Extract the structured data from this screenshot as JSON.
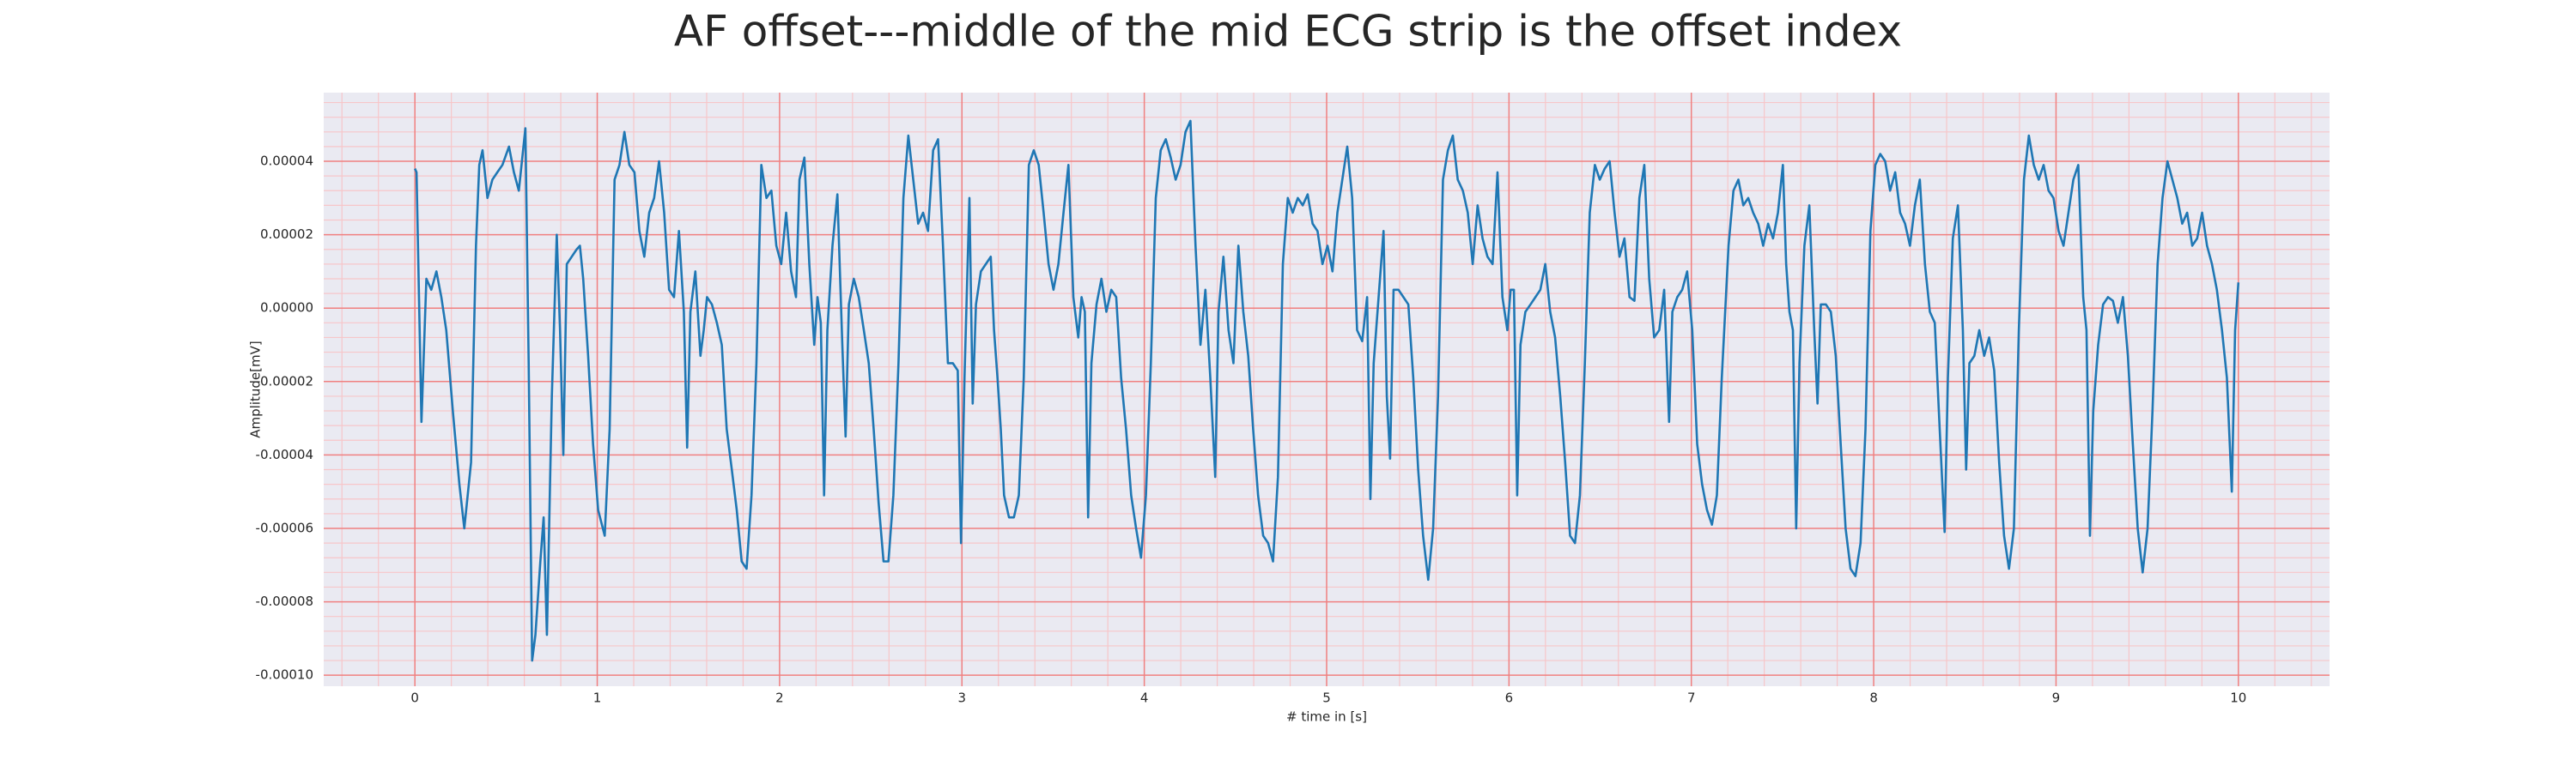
{
  "chart_data": {
    "type": "line",
    "title": "AF offset---middle of the mid ECG strip is the offset index",
    "xlabel": "# time in [s]",
    "ylabel": "Amplitude[mV]",
    "color": "#1f77b4",
    "grid": true,
    "grid_color": "#f08080",
    "minor_grid": true,
    "minor_grid_color": "#f7c6c9",
    "minor_divisions": 5,
    "xlim": [
      -0.5,
      10.5
    ],
    "ylim": [
      -0.000103,
      5.87e-05
    ],
    "xticks": [
      0,
      1,
      2,
      3,
      4,
      5,
      6,
      7,
      8,
      9,
      10
    ],
    "yticks": [
      {
        "value": 4e-05,
        "label": "0.00004"
      },
      {
        "value": 2e-05,
        "label": "0.00002"
      },
      {
        "value": 0,
        "label": "0.00000"
      },
      {
        "value": -2e-05,
        "label": "-0.00002"
      },
      {
        "value": -4e-05,
        "label": "-0.00004"
      },
      {
        "value": -6e-05,
        "label": "-0.00006"
      },
      {
        "value": -8e-05,
        "label": "-0.00008"
      },
      {
        "value": -0.0001,
        "label": "-0.00010"
      }
    ],
    "x": [
      0,
      0.009,
      0.036,
      0.063,
      0.09,
      0.118,
      0.145,
      0.172,
      0.208,
      0.244,
      0.271,
      0.308,
      0.335,
      0.353,
      0.371,
      0.398,
      0.425,
      0.452,
      0.48,
      0.516,
      0.543,
      0.57,
      0.606,
      0.624,
      0.643,
      0.661,
      0.688,
      0.706,
      0.724,
      0.751,
      0.778,
      0.796,
      0.814,
      0.833,
      0.86,
      0.887,
      0.905,
      0.923,
      0.95,
      0.977,
      1.005,
      1.041,
      1.068,
      1.095,
      1.122,
      1.149,
      1.176,
      1.204,
      1.231,
      1.258,
      1.285,
      1.312,
      1.339,
      1.367,
      1.394,
      1.421,
      1.448,
      1.475,
      1.493,
      1.511,
      1.538,
      1.566,
      1.584,
      1.602,
      1.629,
      1.656,
      1.683,
      1.71,
      1.738,
      1.765,
      1.792,
      1.819,
      1.846,
      1.873,
      1.9,
      1.928,
      1.955,
      1.982,
      2.009,
      2.036,
      2.063,
      2.09,
      2.109,
      2.136,
      2.163,
      2.19,
      2.208,
      2.226,
      2.244,
      2.262,
      2.29,
      2.317,
      2.344,
      2.362,
      2.38,
      2.407,
      2.434,
      2.462,
      2.489,
      2.516,
      2.543,
      2.57,
      2.597,
      2.624,
      2.652,
      2.679,
      2.706,
      2.733,
      2.76,
      2.787,
      2.814,
      2.842,
      2.869,
      2.896,
      2.923,
      2.95,
      2.977,
      2.995,
      3.014,
      3.041,
      3.059,
      3.077,
      3.104,
      3.131,
      3.158,
      3.176,
      3.195,
      3.213,
      3.231,
      3.258,
      3.285,
      3.312,
      3.339,
      3.367,
      3.394,
      3.421,
      3.448,
      3.475,
      3.502,
      3.529,
      3.557,
      3.584,
      3.611,
      3.638,
      3.656,
      3.674,
      3.692,
      3.71,
      3.738,
      3.765,
      3.792,
      3.819,
      3.846,
      3.873,
      3.9,
      3.928,
      3.955,
      3.982,
      4.009,
      4.036,
      4.063,
      4.09,
      4.118,
      4.145,
      4.172,
      4.199,
      4.226,
      4.253,
      4.281,
      4.308,
      4.335,
      4.362,
      4.389,
      4.407,
      4.434,
      4.462,
      4.489,
      4.516,
      4.543,
      4.57,
      4.597,
      4.624,
      4.652,
      4.679,
      4.706,
      4.733,
      4.76,
      4.787,
      4.814,
      4.842,
      4.869,
      4.896,
      4.923,
      4.95,
      4.977,
      5.005,
      5.032,
      5.059,
      5.086,
      5.113,
      5.14,
      5.167,
      5.195,
      5.222,
      5.24,
      5.258,
      5.285,
      5.312,
      5.33,
      5.348,
      5.367,
      5.394,
      5.421,
      5.448,
      5.475,
      5.502,
      5.529,
      5.557,
      5.584,
      5.611,
      5.638,
      5.665,
      5.692,
      5.719,
      5.747,
      5.774,
      5.801,
      5.828,
      5.855,
      5.882,
      5.91,
      5.937,
      5.964,
      5.991,
      6.009,
      6.027,
      6.045,
      6.063,
      6.09,
      6.118,
      6.145,
      6.172,
      6.199,
      6.226,
      6.253,
      6.281,
      6.308,
      6.335,
      6.362,
      6.389,
      6.416,
      6.443,
      6.471,
      6.498,
      6.525,
      6.552,
      6.579,
      6.606,
      6.633,
      6.661,
      6.688,
      6.715,
      6.742,
      6.769,
      6.796,
      6.824,
      6.851,
      6.878,
      6.896,
      6.923,
      6.95,
      6.977,
      7.005,
      7.032,
      7.059,
      7.086,
      7.113,
      7.14,
      7.167,
      7.204,
      7.231,
      7.258,
      7.285,
      7.312,
      7.339,
      7.367,
      7.394,
      7.421,
      7.448,
      7.475,
      7.502,
      7.52,
      7.538,
      7.557,
      7.575,
      7.593,
      7.62,
      7.647,
      7.674,
      7.692,
      7.71,
      7.738,
      7.765,
      7.792,
      7.819,
      7.846,
      7.873,
      7.9,
      7.928,
      7.955,
      7.982,
      8.009,
      8.036,
      8.063,
      8.09,
      8.118,
      8.145,
      8.172,
      8.199,
      8.226,
      8.253,
      8.281,
      8.308,
      8.335,
      8.362,
      8.389,
      8.407,
      8.434,
      8.462,
      8.489,
      8.507,
      8.525,
      8.552,
      8.579,
      8.606,
      8.633,
      8.661,
      8.688,
      8.715,
      8.742,
      8.769,
      8.796,
      8.824,
      8.851,
      8.878,
      8.905,
      8.932,
      8.959,
      8.986,
      9.014,
      9.041,
      9.068,
      9.095,
      9.122,
      9.149,
      9.167,
      9.186,
      9.204,
      9.231,
      9.258,
      9.285,
      9.312,
      9.339,
      9.367,
      9.394,
      9.421,
      9.448,
      9.475,
      9.502,
      9.529,
      9.557,
      9.584,
      9.611,
      9.638,
      9.665,
      9.692,
      9.719,
      9.747,
      9.774,
      9.801,
      9.828,
      9.855,
      9.882,
      9.91,
      9.937,
      9.964,
      9.982,
      10.0
    ],
    "values": [
      3.8e-05,
      3.7e-05,
      -3.1e-05,
      8e-06,
      5e-06,
      1e-05,
      3e-06,
      -6e-06,
      -2.8e-05,
      -4.8e-05,
      -6e-05,
      -4.2e-05,
      1.7e-05,
      3.9e-05,
      4.3e-05,
      3e-05,
      3.5e-05,
      3.7e-05,
      3.9e-05,
      4.4e-05,
      3.7e-05,
      3.2e-05,
      4.9e-05,
      -1.5e-05,
      -9.6e-05,
      -8.9e-05,
      -6.9e-05,
      -5.7e-05,
      -8.9e-05,
      -2.4e-05,
      2e-05,
      -6e-06,
      -4e-05,
      1.2e-05,
      1.4e-05,
      1.6e-05,
      1.7e-05,
      8e-06,
      -1.3e-05,
      -3.7e-05,
      -5.5e-05,
      -6.2e-05,
      -3.3e-05,
      3.5e-05,
      3.9e-05,
      4.8e-05,
      3.9e-05,
      3.7e-05,
      2.1e-05,
      1.4e-05,
      2.6e-05,
      3e-05,
      4e-05,
      2.6e-05,
      5e-06,
      3e-06,
      2.1e-05,
      -1e-06,
      -3.8e-05,
      -1e-06,
      1e-05,
      -1.3e-05,
      -6e-06,
      3e-06,
      1e-06,
      -4e-06,
      -1e-05,
      -3.3e-05,
      -4.4e-05,
      -5.5e-05,
      -6.9e-05,
      -7.1e-05,
      -5.1e-05,
      -1.5e-05,
      3.9e-05,
      3e-05,
      3.2e-05,
      1.7e-05,
      1.2e-05,
      2.6e-05,
      1e-05,
      3e-06,
      3.5e-05,
      4.1e-05,
      1.2e-05,
      -1e-05,
      3e-06,
      -4e-06,
      -5.1e-05,
      -6e-06,
      1.7e-05,
      3.1e-05,
      -1e-05,
      -3.5e-05,
      1e-06,
      8e-06,
      3e-06,
      -6e-06,
      -1.5e-05,
      -3.3e-05,
      -5.3e-05,
      -6.9e-05,
      -6.9e-05,
      -5.1e-05,
      -1.5e-05,
      3e-05,
      4.7e-05,
      3.5e-05,
      2.3e-05,
      2.6e-05,
      2.1e-05,
      4.3e-05,
      4.6e-05,
      1.7e-05,
      -1.5e-05,
      -1.5e-05,
      -1.7e-05,
      -6.4e-05,
      -1.9e-05,
      3e-05,
      -2.6e-05,
      1e-06,
      1e-05,
      1.2e-05,
      1.4e-05,
      -6e-06,
      -1.9e-05,
      -3.3e-05,
      -5.1e-05,
      -5.7e-05,
      -5.7e-05,
      -5.1e-05,
      -1.9e-05,
      3.9e-05,
      4.3e-05,
      3.9e-05,
      2.6e-05,
      1.2e-05,
      5e-06,
      1.2e-05,
      2.6e-05,
      3.9e-05,
      3e-06,
      -8e-06,
      3e-06,
      -1e-06,
      -5.7e-05,
      -1.5e-05,
      1e-06,
      8e-06,
      -1e-06,
      5e-06,
      3e-06,
      -1.9e-05,
      -3.3e-05,
      -5.1e-05,
      -6e-05,
      -6.8e-05,
      -5.1e-05,
      -1.5e-05,
      3e-05,
      4.3e-05,
      4.6e-05,
      4.1e-05,
      3.5e-05,
      3.9e-05,
      4.8e-05,
      5.1e-05,
      1.7e-05,
      -1e-05,
      5e-06,
      -1.9e-05,
      -4.6e-05,
      -1e-06,
      1.4e-05,
      -6e-06,
      -1.5e-05,
      1.7e-05,
      -1e-06,
      -1.3e-05,
      -3.3e-05,
      -5.1e-05,
      -6.2e-05,
      -6.4e-05,
      -6.9e-05,
      -4.6e-05,
      1.2e-05,
      3e-05,
      2.6e-05,
      3e-05,
      2.8e-05,
      3.1e-05,
      2.3e-05,
      2.1e-05,
      1.2e-05,
      1.7e-05,
      1e-05,
      2.6e-05,
      3.5e-05,
      4.4e-05,
      3e-05,
      -6e-06,
      -9e-06,
      3e-06,
      -5.2e-05,
      -1.5e-05,
      3e-06,
      2.1e-05,
      -2.4e-05,
      -4.1e-05,
      5e-06,
      5e-06,
      3e-06,
      1e-06,
      -1.9e-05,
      -4.4e-05,
      -6.2e-05,
      -7.4e-05,
      -6e-05,
      -2.4e-05,
      3.5e-05,
      4.3e-05,
      4.7e-05,
      3.5e-05,
      3.2e-05,
      2.6e-05,
      1.2e-05,
      2.8e-05,
      1.9e-05,
      1.4e-05,
      1.2e-05,
      3.7e-05,
      3e-06,
      -6e-06,
      5e-06,
      5e-06,
      -5.1e-05,
      -1e-05,
      -1e-06,
      1e-06,
      3e-06,
      5e-06,
      1.2e-05,
      -1e-06,
      -8e-06,
      -2.4e-05,
      -4.2e-05,
      -6.2e-05,
      -6.4e-05,
      -5.1e-05,
      -1.5e-05,
      2.6e-05,
      3.9e-05,
      3.5e-05,
      3.8e-05,
      4e-05,
      2.6e-05,
      1.4e-05,
      1.9e-05,
      3e-06,
      2e-06,
      3e-05,
      3.9e-05,
      8e-06,
      -8e-06,
      -6e-06,
      5e-06,
      -3.1e-05,
      -1e-06,
      3e-06,
      5e-06,
      1e-05,
      -6e-06,
      -3.7e-05,
      -4.8e-05,
      -5.5e-05,
      -5.9e-05,
      -5.1e-05,
      -1.9e-05,
      1.7e-05,
      3.2e-05,
      3.5e-05,
      2.8e-05,
      3e-05,
      2.6e-05,
      2.3e-05,
      1.7e-05,
      2.3e-05,
      1.9e-05,
      2.6e-05,
      3.9e-05,
      1.2e-05,
      -1e-06,
      -6e-06,
      -6e-05,
      -1.5e-05,
      1.7e-05,
      2.8e-05,
      -6e-06,
      -2.6e-05,
      1e-06,
      1e-06,
      -1e-06,
      -1.3e-05,
      -3.7e-05,
      -6e-05,
      -7.1e-05,
      -7.3e-05,
      -6.4e-05,
      -3.3e-05,
      2.1e-05,
      3.9e-05,
      4.2e-05,
      4e-05,
      3.2e-05,
      3.7e-05,
      2.6e-05,
      2.3e-05,
      1.7e-05,
      2.8e-05,
      3.5e-05,
      1.2e-05,
      -1e-06,
      -4e-06,
      -3.3e-05,
      -6.1e-05,
      -1.9e-05,
      1.9e-05,
      2.8e-05,
      -6e-06,
      -4.4e-05,
      -1.5e-05,
      -1.3e-05,
      -6e-06,
      -1.3e-05,
      -8e-06,
      -1.7e-05,
      -4.2e-05,
      -6.2e-05,
      -7.1e-05,
      -6e-05,
      -6e-06,
      3.5e-05,
      4.7e-05,
      3.9e-05,
      3.5e-05,
      3.9e-05,
      3.2e-05,
      3e-05,
      2.1e-05,
      1.7e-05,
      2.6e-05,
      3.5e-05,
      3.9e-05,
      3e-06,
      -6e-06,
      -6.2e-05,
      -2.8e-05,
      -1e-05,
      1e-06,
      3e-06,
      2e-06,
      -4e-06,
      3e-06,
      -1.3e-05,
      -3.7e-05,
      -6e-05,
      -7.2e-05,
      -6e-05,
      -2.8e-05,
      1.2e-05,
      3e-05,
      4e-05,
      3.5e-05,
      3e-05,
      2.3e-05,
      2.6e-05,
      1.7e-05,
      1.9e-05,
      2.6e-05,
      1.7e-05,
      1.2e-05,
      5e-06,
      -6e-06,
      -1.9e-05,
      -5e-05,
      -6e-06,
      7e-06
    ]
  }
}
